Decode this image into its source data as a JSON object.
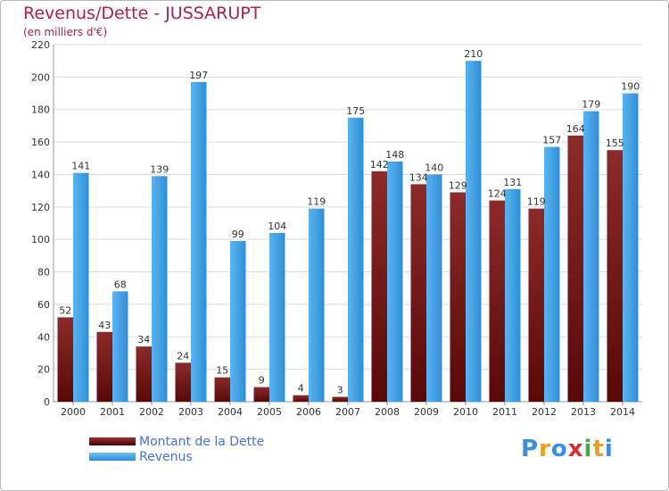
{
  "title": "Revenus/Dette - JUSSARUPT",
  "subtitle": "(en milliers d'€)",
  "logo": "Proxiti",
  "chart_data": {
    "type": "bar",
    "categories": [
      "2000",
      "2001",
      "2002",
      "2003",
      "2004",
      "2005",
      "2006",
      "2007",
      "2008",
      "2009",
      "2010",
      "2011",
      "2012",
      "2013",
      "2014"
    ],
    "series": [
      {
        "name": "Montant de la Dette",
        "color": "#7a1c1c",
        "values": [
          52,
          43,
          34,
          24,
          15,
          9,
          4,
          3,
          142,
          134,
          129,
          124,
          119,
          164,
          155
        ]
      },
      {
        "name": "Revenus",
        "color": "#3b9de0",
        "values": [
          141,
          68,
          139,
          197,
          99,
          104,
          119,
          175,
          148,
          140,
          210,
          131,
          157,
          179,
          190
        ]
      }
    ],
    "ylim": [
      0,
      220
    ],
    "yticks": [
      0,
      20,
      40,
      60,
      80,
      100,
      120,
      140,
      160,
      180,
      200,
      220
    ],
    "grid": true,
    "legend": "bottom-left"
  }
}
